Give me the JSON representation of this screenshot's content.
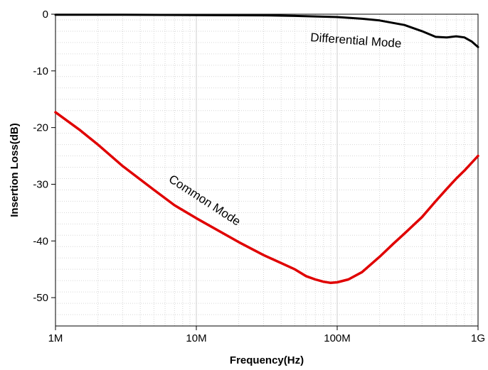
{
  "chart_data": {
    "type": "line",
    "title": "",
    "xlabel": "Frequency(Hz)",
    "ylabel": "Insertion Loss(dB)",
    "x_scale": "log",
    "xlim": [
      1000000,
      1000000000
    ],
    "ylim": [
      -55,
      0
    ],
    "x_ticks": [
      {
        "value": 1000000,
        "label": "1M"
      },
      {
        "value": 10000000,
        "label": "10M"
      },
      {
        "value": 100000000,
        "label": "100M"
      },
      {
        "value": 1000000000,
        "label": "1G"
      }
    ],
    "y_ticks": [
      {
        "value": 0,
        "label": "0"
      },
      {
        "value": -10,
        "label": "-10"
      },
      {
        "value": -20,
        "label": "-20"
      },
      {
        "value": -30,
        "label": "-30"
      },
      {
        "value": -40,
        "label": "-40"
      },
      {
        "value": -50,
        "label": "-50"
      }
    ],
    "grid": true,
    "legend": "none",
    "series": [
      {
        "name": "Differential Mode",
        "color": "#000000",
        "x": [
          1000000,
          3000000,
          10000000,
          30000000,
          50000000,
          100000000,
          150000000,
          200000000,
          300000000,
          400000000,
          500000000,
          600000000,
          700000000,
          800000000,
          900000000,
          1000000000
        ],
        "y": [
          -0.1,
          -0.1,
          -0.15,
          -0.2,
          -0.3,
          -0.5,
          -0.8,
          -1.1,
          -1.9,
          -3.0,
          -4.0,
          -4.1,
          -3.9,
          -4.1,
          -4.8,
          -5.8
        ]
      },
      {
        "name": "Common Mode",
        "color": "#e00000",
        "x": [
          1000000,
          1500000,
          2000000,
          3000000,
          5000000,
          7000000,
          10000000,
          20000000,
          30000000,
          50000000,
          60000000,
          70000000,
          80000000,
          90000000,
          100000000,
          120000000,
          150000000,
          200000000,
          250000000,
          300000000,
          400000000,
          500000000,
          600000000,
          700000000,
          800000000,
          1000000000
        ],
        "y": [
          -17.3,
          -20.5,
          -23.0,
          -26.8,
          -31.0,
          -33.7,
          -36.0,
          -40.2,
          -42.5,
          -45.0,
          -46.2,
          -46.8,
          -47.2,
          -47.4,
          -47.3,
          -46.8,
          -45.5,
          -42.8,
          -40.5,
          -38.7,
          -35.8,
          -33.0,
          -30.8,
          -29.0,
          -27.6,
          -25.0
        ]
      }
    ],
    "annotations": [
      {
        "text": "Differential Mode",
        "series": "Differential Mode"
      },
      {
        "text": "Common Mode",
        "series": "Common Mode"
      }
    ]
  }
}
